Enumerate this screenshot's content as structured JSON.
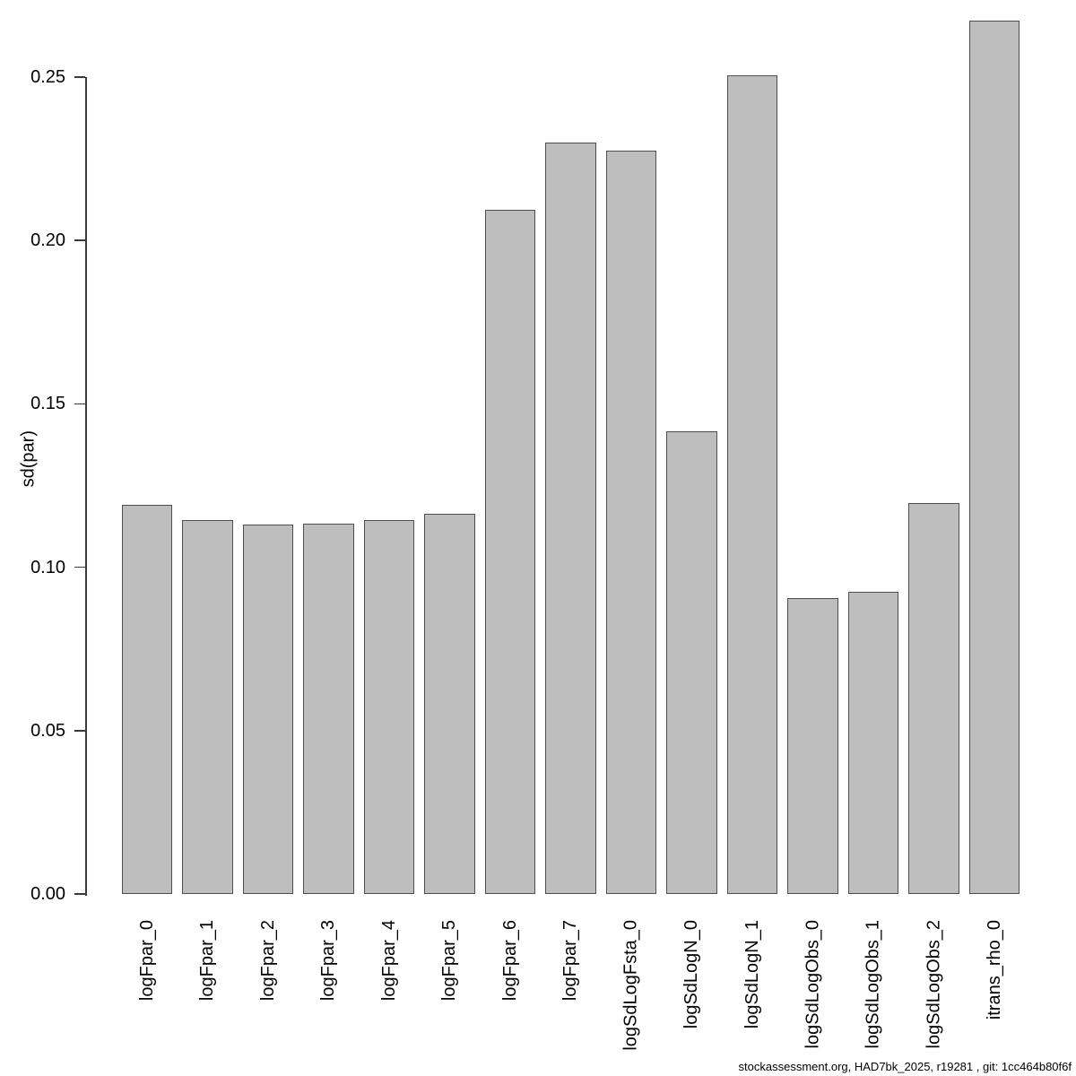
{
  "chart_data": {
    "type": "bar",
    "title": "",
    "xlabel": "",
    "ylabel": "sd(par)",
    "categories": [
      "logFpar_0",
      "logFpar_1",
      "logFpar_2",
      "logFpar_3",
      "logFpar_4",
      "logFpar_5",
      "logFpar_6",
      "logFpar_7",
      "logSdLogFsta_0",
      "logSdLogN_0",
      "logSdLogN_1",
      "logSdLogObs_0",
      "logSdLogObs_1",
      "logSdLogObs_2",
      "itrans_rho_0"
    ],
    "values": [
      0.119,
      0.1145,
      0.113,
      0.1133,
      0.1144,
      0.1163,
      0.2095,
      0.2301,
      0.2274,
      0.1416,
      0.2506,
      0.0905,
      0.0925,
      0.1197,
      0.2674
    ],
    "ylim": [
      0,
      0.27
    ],
    "ytick_labels": [
      "0.00",
      "0.05",
      "0.10",
      "0.15",
      "0.20",
      "0.25"
    ],
    "ytick_values": [
      0,
      0.05,
      0.1,
      0.15,
      0.2,
      0.25
    ],
    "grid": "off",
    "legend": "none",
    "bar_fill": "#bebebe",
    "bar_border": "#4f4f4f",
    "axis_color": "#3a3a3a"
  },
  "footer": {
    "text": "stockassessment.org, HAD7bk_2025, r19281 , git: 1cc464b80f6f"
  }
}
